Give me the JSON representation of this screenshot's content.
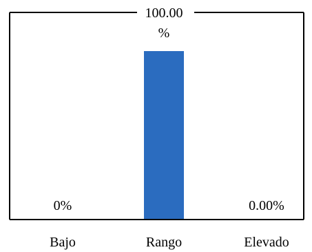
{
  "chart_data": {
    "type": "bar",
    "categories": [
      "Bajo",
      "Rango",
      "Elevado"
    ],
    "values": [
      0,
      100,
      0
    ],
    "data_labels": [
      "0%",
      "100.00\n%",
      "0.00%"
    ],
    "ylim": [
      0,
      100
    ],
    "grid": false,
    "legend": "none",
    "colors": {
      "bar": "#2B6CBF",
      "frame": "#000000",
      "text": "#000000",
      "background": "#FFFFFF"
    }
  }
}
